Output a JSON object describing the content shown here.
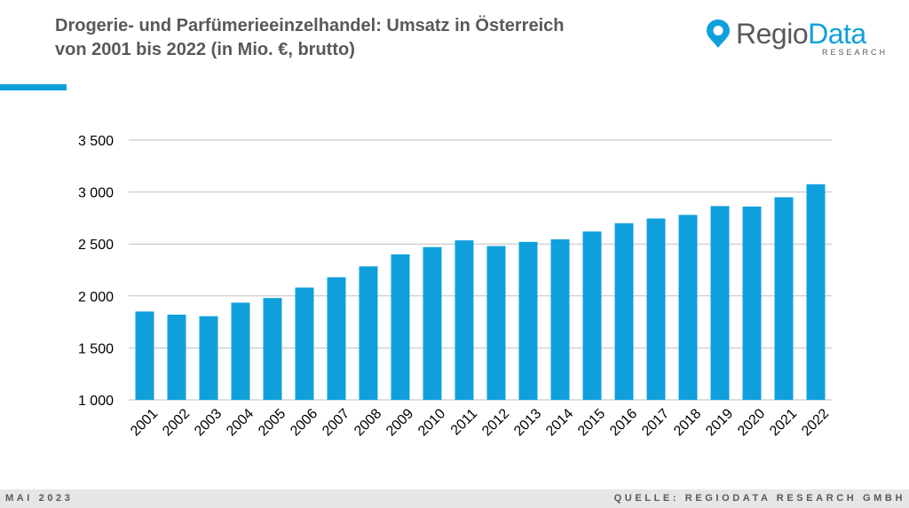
{
  "header": {
    "title_line1": "Drogerie- und Parfümerieeinzelhandel: Umsatz in Österreich",
    "title_line2": "von 2001 bis 2022 (in Mio. €, brutto)"
  },
  "logo": {
    "regio": "Regio",
    "data": "Data",
    "sub": "RESEARCH",
    "icon": "location-pin-icon"
  },
  "footer": {
    "date": "MAI 2023",
    "source": "QUELLE: REGIODATA RESEARCH GMBH"
  },
  "colors": {
    "bar": "#0fa0dc",
    "accent": "#0fa0dc",
    "title": "#595959",
    "grid": "#bfbfbf"
  },
  "chart_data": {
    "type": "bar",
    "title": "Drogerie- und Parfümerieeinzelhandel: Umsatz in Österreich von 2001 bis 2022 (in Mio. €, brutto)",
    "categories": [
      "2001",
      "2002",
      "2003",
      "2004",
      "2005",
      "2006",
      "2007",
      "2008",
      "2009",
      "2010",
      "2011",
      "2012",
      "2013",
      "2014",
      "2015",
      "2016",
      "2017",
      "2018",
      "2019",
      "2020",
      "2021",
      "2022"
    ],
    "values": [
      1850,
      1820,
      1805,
      1935,
      1980,
      2080,
      2180,
      2285,
      2400,
      2470,
      2535,
      2480,
      2520,
      2545,
      2620,
      2700,
      2745,
      2780,
      2865,
      2860,
      2950,
      3075
    ],
    "yticks": [
      1000,
      1500,
      2000,
      2500,
      3000,
      3500
    ],
    "ytick_labels": [
      "1 000",
      "1 500",
      "2 000",
      "2 500",
      "3 000",
      "3 500"
    ],
    "ylim": [
      1000,
      3500
    ],
    "xlabel": "",
    "ylabel": "",
    "grid": true,
    "legend": "none"
  }
}
